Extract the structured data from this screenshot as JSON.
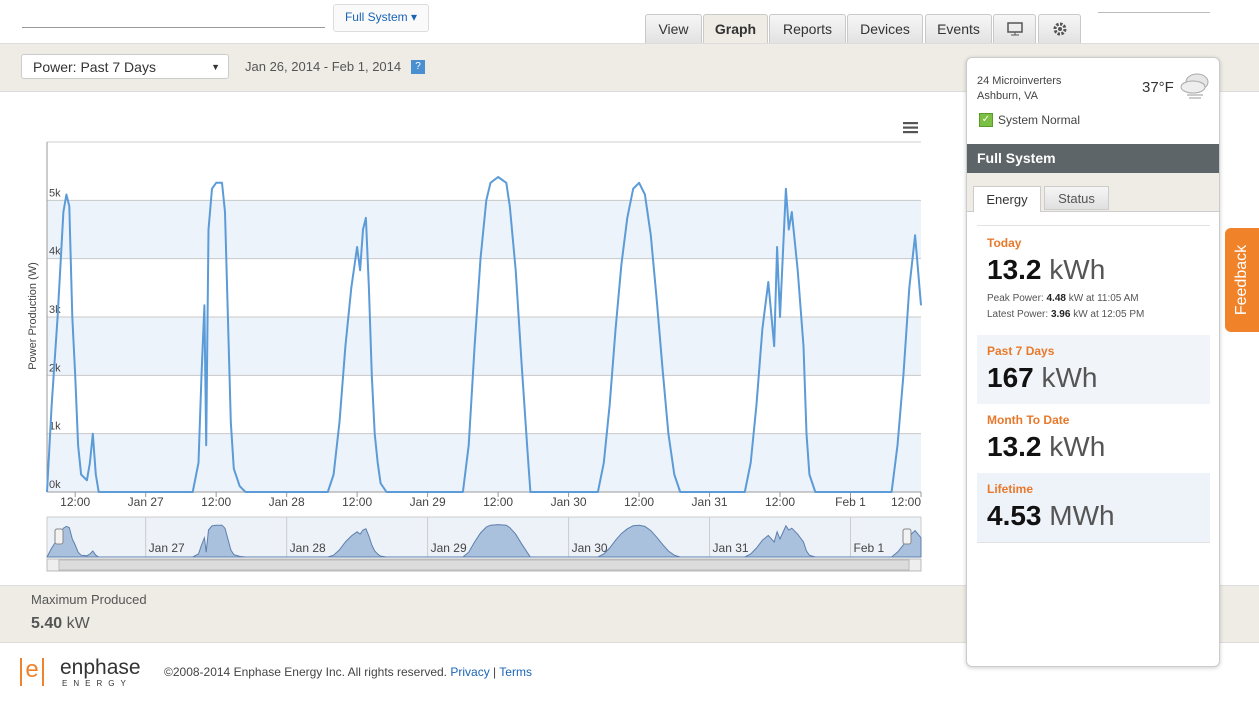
{
  "header": {
    "system_menu": "Full System",
    "tabs": [
      "View",
      "Graph",
      "Reports",
      "Devices",
      "Events"
    ]
  },
  "toolbar": {
    "range_select": "Power: Past 7 Days",
    "date_range": "Jan 26, 2014 - Feb 1, 2014",
    "help": "?"
  },
  "chart_data": {
    "type": "line",
    "y_label": "Power Production (W)",
    "x": [
      7.2,
      8,
      9,
      10,
      10.5,
      11,
      11.5,
      12,
      12.5,
      13,
      14,
      14.5,
      15,
      15.5,
      16,
      32,
      33,
      33.5,
      34,
      34.3,
      34.7,
      35.3,
      36,
      37,
      37.5,
      38,
      38.5,
      39,
      40,
      41,
      55,
      56,
      57,
      58,
      59,
      60,
      60.5,
      61,
      61.5,
      62,
      62.5,
      63,
      63.5,
      64,
      65,
      78,
      79,
      80,
      81,
      82,
      82.7,
      84,
      85.4,
      86,
      87,
      88,
      89,
      89.5,
      101,
      102,
      103,
      104,
      105,
      106,
      107,
      108,
      109,
      110,
      111,
      112,
      113,
      114,
      115,
      126,
      127,
      128,
      129,
      130,
      131,
      131.5,
      132,
      133,
      133.5,
      134,
      135,
      136,
      136.5,
      137,
      138,
      151,
      152,
      153,
      154,
      155,
      156
    ],
    "series": [
      {
        "color": "#5b9bd8",
        "values": [
          0,
          1500,
          3000,
          4800,
          5100,
          4900,
          3000,
          2000,
          800,
          300,
          200,
          500,
          1000,
          300,
          0,
          0,
          500,
          2000,
          3200,
          800,
          4500,
          5200,
          5300,
          5300,
          4800,
          3000,
          1200,
          400,
          100,
          0,
          0,
          300,
          1200,
          2500,
          3500,
          4200,
          3800,
          4500,
          4700,
          3500,
          2000,
          1000,
          500,
          150,
          0,
          0,
          800,
          2500,
          4000,
          5000,
          5300,
          5400,
          5300,
          4900,
          3800,
          2200,
          700,
          0,
          0,
          500,
          1500,
          2800,
          3900,
          4700,
          5200,
          5300,
          5100,
          4400,
          3300,
          2100,
          1000,
          300,
          0,
          0,
          500,
          1500,
          2800,
          3600,
          2500,
          4200,
          3000,
          5200,
          4500,
          4800,
          3800,
          2500,
          1000,
          300,
          0,
          0,
          800,
          2000,
          3500,
          4400,
          3200
        ]
      }
    ],
    "xlim": [
      7.2,
      156
    ],
    "xticks": [
      {
        "value": 12,
        "label": "12:00"
      },
      {
        "value": 24,
        "label": "Jan 27"
      },
      {
        "value": 36,
        "label": "12:00"
      },
      {
        "value": 48,
        "label": "Jan 28"
      },
      {
        "value": 60,
        "label": "12:00"
      },
      {
        "value": 72,
        "label": "Jan 29"
      },
      {
        "value": 84,
        "label": "12:00"
      },
      {
        "value": 96,
        "label": "Jan 30"
      },
      {
        "value": 108,
        "label": "12:00"
      },
      {
        "value": 120,
        "label": "Jan 31"
      },
      {
        "value": 132,
        "label": "12:00"
      },
      {
        "value": 144,
        "label": "Feb 1"
      },
      {
        "value": 156,
        "label": "12:00"
      }
    ],
    "ylim": [
      0,
      6000
    ],
    "yticks": [
      {
        "value": 0,
        "label": "0k"
      },
      {
        "value": 1000,
        "label": "1k"
      },
      {
        "value": 2000,
        "label": "2k"
      },
      {
        "value": 3000,
        "label": "3k"
      },
      {
        "value": 4000,
        "label": "4k"
      },
      {
        "value": 5000,
        "label": "5k"
      }
    ],
    "grid": true,
    "band_color": "#edf3fa",
    "navigator_xticks": [
      {
        "value": 24,
        "label": "Jan 27"
      },
      {
        "value": 48,
        "label": "Jan 28"
      },
      {
        "value": 72,
        "label": "Jan 29"
      },
      {
        "value": 96,
        "label": "Jan 30"
      },
      {
        "value": 120,
        "label": "Jan 31"
      },
      {
        "value": 144,
        "label": "Feb 1"
      }
    ],
    "navigator_color": "#a9c1dd"
  },
  "summary": {
    "label": "Maximum Produced",
    "value": "5.40",
    "unit": "kW"
  },
  "panel": {
    "site": "24 Microinverters",
    "location": "Ashburn, VA",
    "temperature": "37°F",
    "status": "System Normal",
    "title": "Full System",
    "tabs": [
      "Energy",
      "Status"
    ],
    "today": {
      "label": "Today",
      "value": "13.2",
      "unit": "kWh",
      "peak": {
        "label": "Peak Power:",
        "value": "4.48",
        "detail": "kW at 11:05 AM"
      },
      "latest": {
        "label": "Latest Power:",
        "value": "3.96",
        "detail": "kW at 12:05 PM"
      }
    },
    "stats": [
      {
        "label": "Past 7 Days",
        "value": "167",
        "unit": "kWh"
      },
      {
        "label": "Month To Date",
        "value": "13.2",
        "unit": "kWh"
      },
      {
        "label": "Lifetime",
        "value": "4.53",
        "unit": "MWh"
      }
    ]
  },
  "feedback": "Feedback",
  "footer": {
    "logo_mark": "e",
    "logo": "enphase",
    "logo_sub": "ENERGY",
    "copyright": "©2008-2014 Enphase Energy Inc. All rights reserved.",
    "links": [
      "Privacy",
      "Terms"
    ],
    "separator": "|"
  }
}
